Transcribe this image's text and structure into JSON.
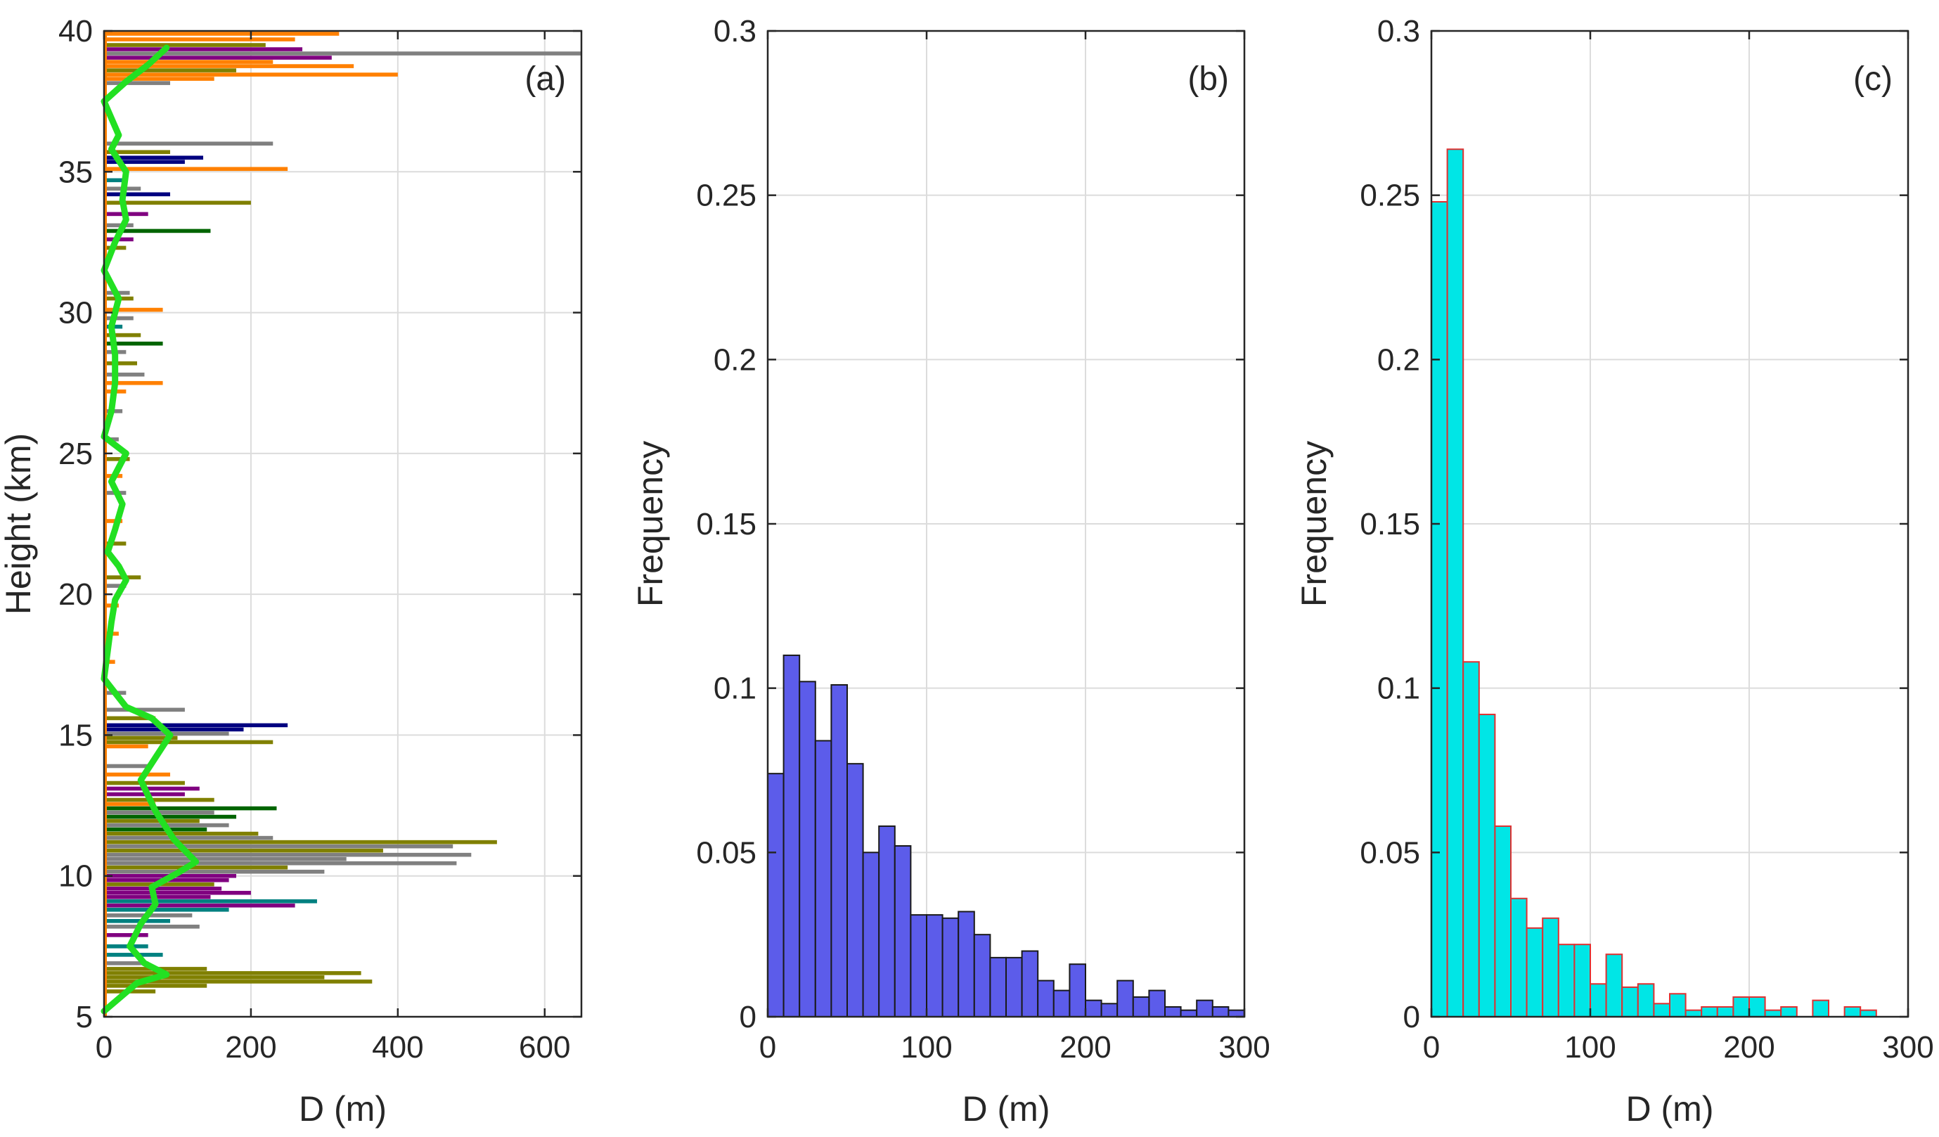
{
  "chart_data": [
    {
      "id": "a",
      "type": "line",
      "panel_label": "(a)",
      "xlabel": "D (m)",
      "ylabel": "Height (km)",
      "xlim": [
        0,
        650
      ],
      "ylim": [
        5,
        40
      ],
      "xticks": [
        0,
        200,
        400,
        600
      ],
      "yticks": [
        5,
        10,
        15,
        20,
        25,
        30,
        35,
        40
      ],
      "grid": true,
      "mean_profile": {
        "name": "mean",
        "color": "#22e022",
        "points": [
          [
            0,
            5.2
          ],
          [
            45,
            6.2
          ],
          [
            85,
            6.5
          ],
          [
            55,
            6.9
          ],
          [
            35,
            7.5
          ],
          [
            50,
            8.3
          ],
          [
            70,
            9.0
          ],
          [
            65,
            9.6
          ],
          [
            100,
            10.1
          ],
          [
            125,
            10.5
          ],
          [
            95,
            11.3
          ],
          [
            70,
            12.3
          ],
          [
            50,
            13.4
          ],
          [
            70,
            14.2
          ],
          [
            90,
            15.0
          ],
          [
            65,
            15.6
          ],
          [
            30,
            16.0
          ],
          [
            0,
            17.0
          ],
          [
            5,
            18.0
          ],
          [
            10,
            19.0
          ],
          [
            15,
            19.8
          ],
          [
            30,
            20.5
          ],
          [
            20,
            21.0
          ],
          [
            5,
            21.5
          ],
          [
            15,
            22.3
          ],
          [
            25,
            23.2
          ],
          [
            10,
            24.0
          ],
          [
            20,
            24.5
          ],
          [
            30,
            25.0
          ],
          [
            0,
            25.6
          ],
          [
            10,
            26.5
          ],
          [
            15,
            27.5
          ],
          [
            15,
            28.5
          ],
          [
            10,
            29.5
          ],
          [
            20,
            30.5
          ],
          [
            0,
            31.5
          ],
          [
            15,
            32.5
          ],
          [
            30,
            33.3
          ],
          [
            25,
            34.0
          ],
          [
            30,
            35.0
          ],
          [
            10,
            35.8
          ],
          [
            20,
            36.3
          ],
          [
            0,
            37.5
          ],
          [
            30,
            38.2
          ],
          [
            60,
            38.8
          ],
          [
            85,
            39.4
          ]
        ]
      },
      "series_colors": [
        "#FF8000",
        "#808000",
        "#808080",
        "#800080",
        "#006400",
        "#000080",
        "#008080"
      ],
      "bars": [
        [
          39.9,
          320,
          "#FF8000"
        ],
        [
          39.7,
          260,
          "#FF8000"
        ],
        [
          39.5,
          220,
          "#808000"
        ],
        [
          39.35,
          270,
          "#800080"
        ],
        [
          39.2,
          650,
          "#808080"
        ],
        [
          39.05,
          310,
          "#800080"
        ],
        [
          38.9,
          230,
          "#FF8000"
        ],
        [
          38.75,
          340,
          "#FF8000"
        ],
        [
          38.6,
          180,
          "#808000"
        ],
        [
          38.45,
          400,
          "#FF8000"
        ],
        [
          38.3,
          150,
          "#FF8000"
        ],
        [
          38.15,
          90,
          "#808080"
        ],
        [
          36.0,
          230,
          "#808080"
        ],
        [
          35.7,
          90,
          "#808000"
        ],
        [
          35.5,
          135,
          "#000080"
        ],
        [
          35.35,
          110,
          "#000080"
        ],
        [
          35.1,
          250,
          "#FF8000"
        ],
        [
          34.7,
          30,
          "#008080"
        ],
        [
          34.4,
          50,
          "#808080"
        ],
        [
          34.2,
          90,
          "#000080"
        ],
        [
          33.9,
          200,
          "#808000"
        ],
        [
          33.5,
          60,
          "#800080"
        ],
        [
          33.1,
          40,
          "#808080"
        ],
        [
          32.9,
          145,
          "#006400"
        ],
        [
          32.6,
          40,
          "#800080"
        ],
        [
          32.3,
          30,
          "#808000"
        ],
        [
          30.7,
          35,
          "#808080"
        ],
        [
          30.5,
          40,
          "#808000"
        ],
        [
          30.1,
          80,
          "#FF8000"
        ],
        [
          29.8,
          40,
          "#808080"
        ],
        [
          29.5,
          25,
          "#008080"
        ],
        [
          29.2,
          50,
          "#808000"
        ],
        [
          28.9,
          80,
          "#006400"
        ],
        [
          28.6,
          30,
          "#808080"
        ],
        [
          28.2,
          45,
          "#808000"
        ],
        [
          27.8,
          55,
          "#808080"
        ],
        [
          27.5,
          80,
          "#FF8000"
        ],
        [
          27.2,
          30,
          "#FF8000"
        ],
        [
          26.5,
          25,
          "#808080"
        ],
        [
          25.5,
          20,
          "#808080"
        ],
        [
          24.8,
          35,
          "#808000"
        ],
        [
          24.2,
          25,
          "#FF8000"
        ],
        [
          23.6,
          30,
          "#808080"
        ],
        [
          22.6,
          25,
          "#FF8000"
        ],
        [
          21.8,
          30,
          "#808000"
        ],
        [
          20.6,
          50,
          "#808000"
        ],
        [
          20.3,
          30,
          "#808080"
        ],
        [
          19.6,
          20,
          "#FF8000"
        ],
        [
          18.6,
          20,
          "#FF8000"
        ],
        [
          17.6,
          15,
          "#FF8000"
        ],
        [
          16.5,
          30,
          "#808080"
        ],
        [
          15.9,
          110,
          "#808080"
        ],
        [
          15.6,
          70,
          "#808000"
        ],
        [
          15.35,
          250,
          "#000080"
        ],
        [
          15.2,
          190,
          "#000080"
        ],
        [
          15.05,
          170,
          "#808080"
        ],
        [
          14.9,
          100,
          "#808000"
        ],
        [
          14.75,
          230,
          "#808000"
        ],
        [
          14.6,
          60,
          "#FF8000"
        ],
        [
          13.9,
          60,
          "#808080"
        ],
        [
          13.6,
          90,
          "#FF8000"
        ],
        [
          13.3,
          110,
          "#808000"
        ],
        [
          13.1,
          130,
          "#800080"
        ],
        [
          12.9,
          110,
          "#800080"
        ],
        [
          12.7,
          150,
          "#808000"
        ],
        [
          12.55,
          70,
          "#FF8000"
        ],
        [
          12.4,
          235,
          "#006400"
        ],
        [
          12.25,
          150,
          "#808080"
        ],
        [
          12.1,
          180,
          "#006400"
        ],
        [
          11.95,
          130,
          "#808000"
        ],
        [
          11.8,
          170,
          "#808080"
        ],
        [
          11.65,
          140,
          "#006400"
        ],
        [
          11.5,
          210,
          "#808000"
        ],
        [
          11.35,
          230,
          "#808080"
        ],
        [
          11.2,
          535,
          "#808000"
        ],
        [
          11.05,
          475,
          "#808080"
        ],
        [
          10.9,
          380,
          "#808000"
        ],
        [
          10.75,
          500,
          "#808080"
        ],
        [
          10.6,
          330,
          "#808080"
        ],
        [
          10.45,
          480,
          "#808080"
        ],
        [
          10.3,
          250,
          "#808000"
        ],
        [
          10.15,
          300,
          "#808080"
        ],
        [
          10.0,
          180,
          "#800080"
        ],
        [
          9.85,
          170,
          "#800080"
        ],
        [
          9.7,
          150,
          "#808000"
        ],
        [
          9.55,
          160,
          "#800080"
        ],
        [
          9.4,
          200,
          "#800080"
        ],
        [
          9.25,
          145,
          "#800080"
        ],
        [
          9.1,
          290,
          "#008080"
        ],
        [
          8.95,
          260,
          "#800080"
        ],
        [
          8.8,
          170,
          "#008080"
        ],
        [
          8.6,
          120,
          "#808080"
        ],
        [
          8.4,
          90,
          "#008080"
        ],
        [
          8.2,
          130,
          "#808080"
        ],
        [
          7.9,
          60,
          "#800080"
        ],
        [
          7.5,
          60,
          "#008080"
        ],
        [
          7.2,
          80,
          "#008080"
        ],
        [
          6.9,
          60,
          "#808080"
        ],
        [
          6.7,
          140,
          "#808000"
        ],
        [
          6.55,
          350,
          "#808000"
        ],
        [
          6.4,
          300,
          "#808000"
        ],
        [
          6.25,
          365,
          "#808000"
        ],
        [
          6.1,
          140,
          "#808000"
        ],
        [
          5.9,
          70,
          "#808000"
        ]
      ]
    },
    {
      "id": "b",
      "type": "bar",
      "panel_label": "(b)",
      "xlabel": "D (m)",
      "ylabel": "Frequency",
      "xlim": [
        0,
        300
      ],
      "ylim": [
        0,
        0.3
      ],
      "xticks": [
        0,
        100,
        200,
        300
      ],
      "yticks": [
        0,
        0.05,
        0.1,
        0.15,
        0.2,
        0.25,
        0.3
      ],
      "ytick_labels": [
        "0",
        "0.05",
        "0.1",
        "0.15",
        "0.2",
        "0.25",
        "0.3"
      ],
      "grid": true,
      "bin_width": 10,
      "fill_color": "#5c5cea",
      "edge_color": "#1a1a1a",
      "bin_starts": [
        0,
        10,
        20,
        30,
        40,
        50,
        60,
        70,
        80,
        90,
        100,
        110,
        120,
        130,
        140,
        150,
        160,
        170,
        180,
        190,
        200,
        210,
        220,
        230,
        240,
        250,
        260,
        270,
        280,
        290
      ],
      "values": [
        0.074,
        0.11,
        0.102,
        0.084,
        0.101,
        0.077,
        0.05,
        0.058,
        0.052,
        0.031,
        0.031,
        0.03,
        0.032,
        0.025,
        0.018,
        0.018,
        0.02,
        0.011,
        0.008,
        0.016,
        0.005,
        0.004,
        0.011,
        0.006,
        0.008,
        0.003,
        0.002,
        0.005,
        0.003,
        0.002
      ]
    },
    {
      "id": "c",
      "type": "bar",
      "panel_label": "(c)",
      "xlabel": "D (m)",
      "ylabel": "Frequency",
      "xlim": [
        0,
        300
      ],
      "ylim": [
        0,
        0.3
      ],
      "xticks": [
        0,
        100,
        200,
        300
      ],
      "yticks": [
        0,
        0.05,
        0.1,
        0.15,
        0.2,
        0.25,
        0.3
      ],
      "ytick_labels": [
        "0",
        "0.05",
        "0.1",
        "0.15",
        "0.2",
        "0.25",
        "0.3"
      ],
      "grid": true,
      "bin_width": 10,
      "fill_color": "#00e6e6",
      "edge_color": "#e03030",
      "bin_starts": [
        0,
        10,
        20,
        30,
        40,
        50,
        60,
        70,
        80,
        90,
        100,
        110,
        120,
        130,
        140,
        150,
        160,
        170,
        180,
        190,
        200,
        210,
        220,
        230,
        240,
        250,
        260,
        270,
        280,
        290
      ],
      "values": [
        0.248,
        0.264,
        0.108,
        0.092,
        0.058,
        0.036,
        0.027,
        0.03,
        0.022,
        0.022,
        0.01,
        0.019,
        0.009,
        0.01,
        0.004,
        0.007,
        0.002,
        0.003,
        0.003,
        0.006,
        0.006,
        0.002,
        0.003,
        0.0,
        0.005,
        0.0,
        0.003,
        0.002,
        0.0,
        0.0
      ]
    }
  ]
}
